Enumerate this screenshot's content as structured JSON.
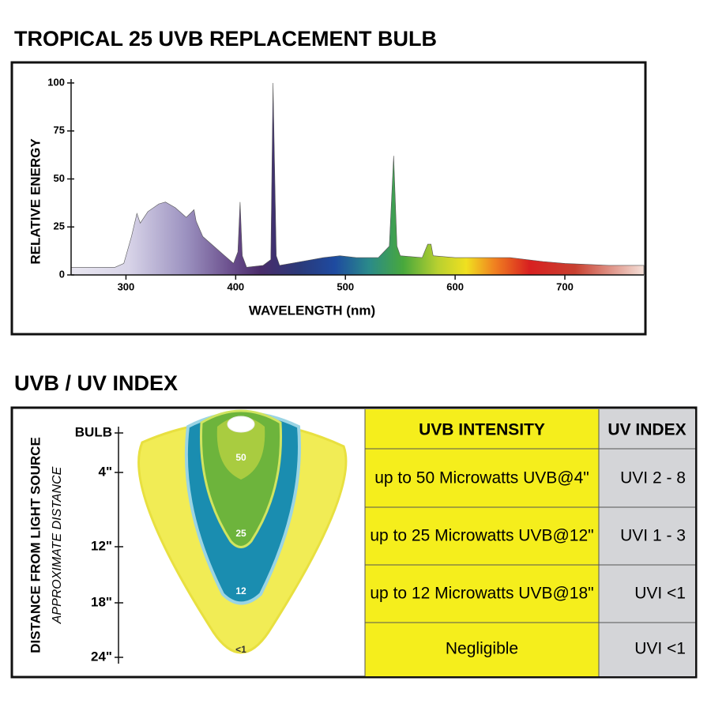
{
  "chart_data": {
    "type": "area",
    "title": "TROPICAL 25 UVB REPLACEMENT BULB",
    "x_label": "WAVELENGTH (nm)",
    "y_label": "RELATIVE ENERGY",
    "x": [
      250,
      290,
      298,
      305,
      310,
      313,
      320,
      330,
      336,
      345,
      355,
      362,
      364,
      370,
      380,
      390,
      398,
      402,
      404,
      406,
      410,
      425,
      432,
      434,
      437,
      440,
      460,
      480,
      495,
      510,
      530,
      540,
      544,
      547,
      550,
      570,
      575,
      578,
      580,
      600,
      620,
      650,
      680,
      700,
      740,
      772
    ],
    "values": [
      4,
      4,
      6,
      20,
      32,
      27,
      33,
      37,
      38,
      35,
      30,
      34,
      28,
      20,
      15,
      10,
      6,
      12,
      38,
      10,
      4,
      5,
      8,
      100,
      10,
      5,
      7,
      9,
      10,
      9,
      9,
      15,
      62,
      15,
      10,
      9,
      16,
      16,
      10,
      9,
      9,
      9,
      7,
      6,
      5,
      5
    ],
    "xlim": [
      250,
      772
    ],
    "ylim": [
      0,
      100
    ],
    "xticks": [
      300,
      400,
      500,
      600,
      700
    ],
    "yticks": [
      0,
      25,
      50,
      75,
      100
    ]
  },
  "uv_index": {
    "title": "UVB / UV INDEX",
    "axis_label": "DISTANCE FROM LIGHT SOURCE",
    "axis_sublabel": "APPROXIMATE DISTANCE",
    "distance_ticks": [
      "BULB",
      "4\"",
      "12\"",
      "18\"",
      "24\""
    ],
    "zone_labels": [
      "50",
      "25",
      "12",
      "<1"
    ],
    "table": {
      "headers": [
        "UVB INTENSITY",
        "UV INDEX"
      ],
      "rows": [
        [
          "up to 50 Microwatts UVB@4\"",
          "UVI 2 - 8"
        ],
        [
          "up to 25 Microwatts UVB@12\"",
          "UVI 1 - 3"
        ],
        [
          "up to 12 Microwatts UVB@18\"",
          "UVI <1"
        ],
        [
          "Negligible",
          "UVI <1"
        ]
      ]
    }
  }
}
